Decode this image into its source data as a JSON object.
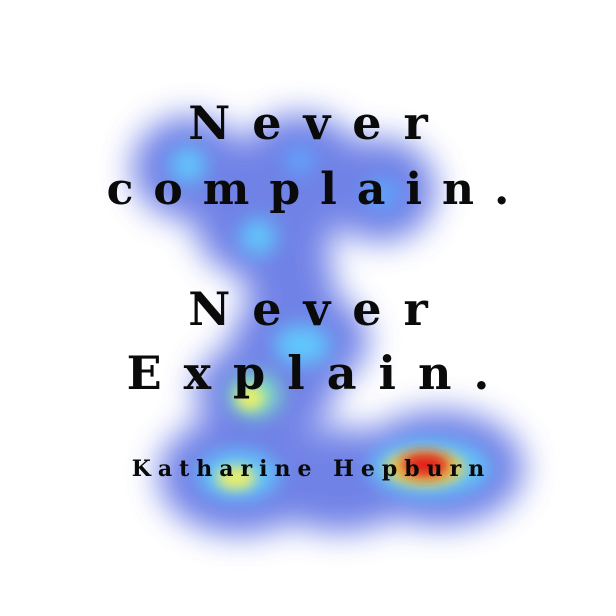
{
  "quote": {
    "line1": "Never",
    "line2": "complain.",
    "line3": "Never",
    "line4": "Explain.",
    "author": "Katharine Hepburn"
  },
  "overlay": {
    "type": "attention-heatmap",
    "colors": {
      "low": "#4a5ee0",
      "mid": "#5fd0ff",
      "high_mid": "#f5f060",
      "peak": "#e01818"
    }
  }
}
